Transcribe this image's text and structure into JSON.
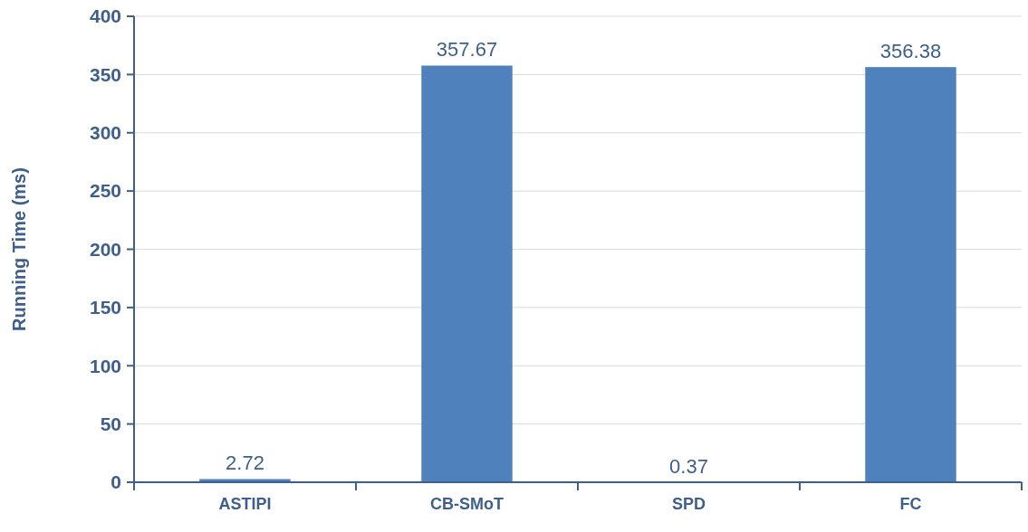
{
  "chart_data": {
    "type": "bar",
    "ylabel": "Running Time (ms)",
    "categories": [
      "ASTIPI",
      "CB-SMoT",
      "SPD",
      "FC"
    ],
    "values": [
      2.72,
      357.67,
      0.37,
      356.38
    ],
    "color": "#4f81bd",
    "ylim": [
      0,
      400
    ],
    "yticks": [
      0,
      50,
      100,
      150,
      200,
      250,
      300,
      350,
      400
    ],
    "grid": "y",
    "data_labels": true
  }
}
